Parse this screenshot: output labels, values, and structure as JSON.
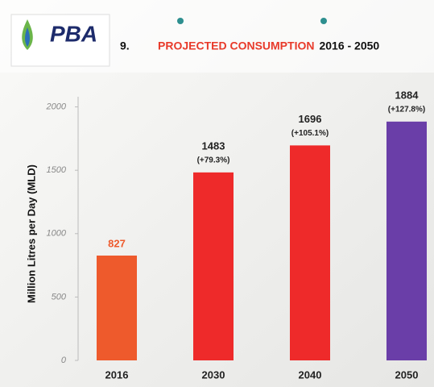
{
  "chart_data": {
    "type": "bar",
    "logo": "PBA",
    "title_number": "9.",
    "title": "PROJECTED CONSUMPTION",
    "title_period": "2016 - 2050",
    "y_label": "Million Litres per Day (MLD)",
    "categories": [
      "2016",
      "2030",
      "2040",
      "2050"
    ],
    "values": [
      827,
      1483,
      1696,
      1884
    ],
    "change_labels": [
      null,
      "(+79.3%)",
      "(+105.1%)",
      "(+127.8%)"
    ],
    "colors": [
      "#ee5a2c",
      "#ee2a2a",
      "#ee2a2a",
      "#6a3ea8"
    ],
    "label_colors": [
      "#ee5a2c",
      "#222222",
      "#222222",
      "#222222"
    ],
    "ylim": [
      0,
      2150
    ],
    "yticks": [
      0,
      500,
      1000,
      1500,
      2000
    ]
  }
}
